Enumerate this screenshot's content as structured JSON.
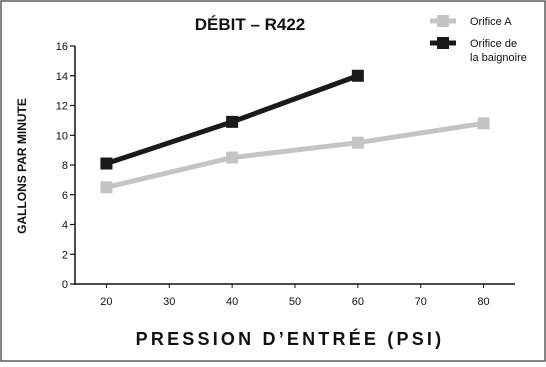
{
  "chart_data": {
    "type": "line",
    "title": "DÉBIT – R422",
    "xlabel": "PRESSION D’ENTRÉE (PSI)",
    "ylabel": "GALLONS PAR MINUTE",
    "xlim": [
      15,
      85
    ],
    "ylim": [
      0,
      16
    ],
    "x_ticks": [
      "20",
      "30",
      "40",
      "50",
      "60",
      "70",
      "80"
    ],
    "y_ticks": [
      "0",
      "2",
      "4",
      "6",
      "8",
      "10",
      "12",
      "14",
      "16"
    ],
    "grid": false,
    "legend_position": "top-right",
    "series": [
      {
        "name": "Orifice A",
        "legend_lines": [
          "Orifice A"
        ],
        "color": "#c4c4c4",
        "marker": "square",
        "x": [
          20,
          40,
          60,
          80
        ],
        "y": [
          6.5,
          8.5,
          9.5,
          10.8
        ]
      },
      {
        "name": "Orifice de la baignoire",
        "legend_lines": [
          "Orifice de",
          "la baignoire"
        ],
        "color": "#1a1a1a",
        "marker": "square",
        "x": [
          20,
          40,
          60
        ],
        "y": [
          8.1,
          10.9,
          14.0
        ]
      }
    ]
  }
}
